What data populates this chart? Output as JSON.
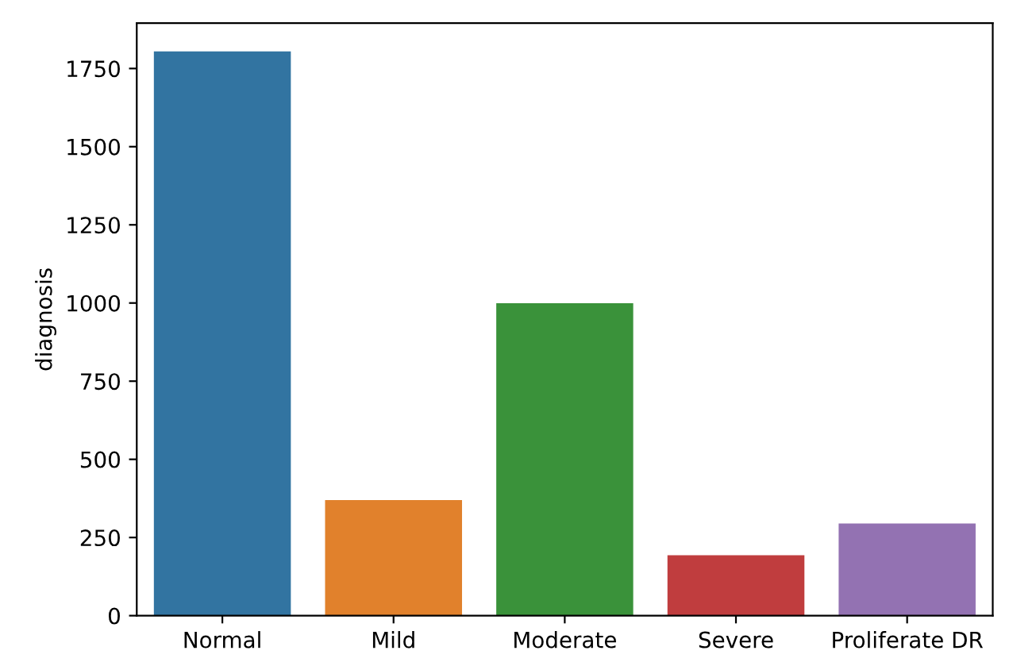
{
  "chart_data": {
    "type": "bar",
    "ylabel": "diagnosis",
    "categories": [
      "Normal",
      "Mild",
      "Moderate",
      "Severe",
      "Proliferate DR"
    ],
    "values": [
      1805,
      370,
      999,
      193,
      295
    ],
    "colors": [
      "#3274a1",
      "#e1812c",
      "#3a923a",
      "#c03d3e",
      "#9372b2"
    ],
    "ylim": [
      0,
      1895
    ],
    "yticks": [
      0,
      250,
      500,
      750,
      1000,
      1250,
      1500,
      1750
    ],
    "grid": false
  }
}
